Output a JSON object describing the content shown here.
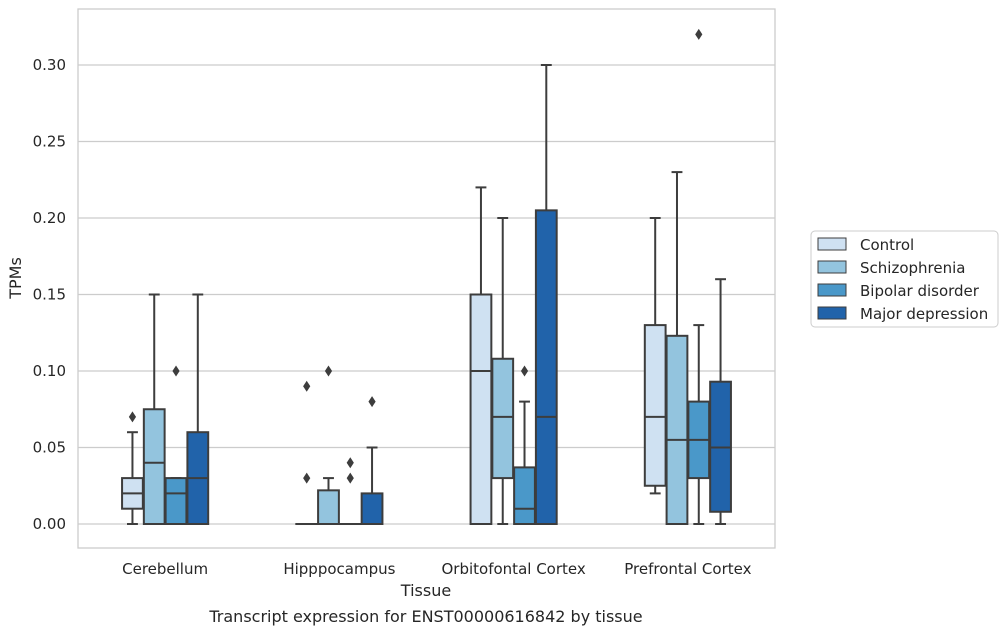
{
  "chart_data": {
    "type": "box",
    "caption": "Transcript expression for ENST00000616842 by tissue",
    "xlabel": "Tissue",
    "ylabel": "TPMs",
    "ylim": [
      -0.016,
      0.338
    ],
    "yticks": [
      0.0,
      0.05,
      0.1,
      0.15,
      0.2,
      0.25,
      0.3
    ],
    "ytick_labels": [
      "0.00",
      "0.05",
      "0.10",
      "0.15",
      "0.20",
      "0.25",
      "0.30"
    ],
    "grid": true,
    "legend_position": "right",
    "categories": [
      "Cerebellum",
      "Hipppocampus",
      "Orbitofontal Cortex",
      "Prefrontal Cortex"
    ],
    "series": [
      {
        "name": "Control",
        "color": "#cfe1f2",
        "boxes": [
          {
            "whislo": 0.0,
            "q1": 0.01,
            "med": 0.02,
            "q3": 0.03,
            "whishi": 0.06,
            "fliers": [
              0.07
            ]
          },
          {
            "whislo": 0.0,
            "q1": 0.0,
            "med": 0.0,
            "q3": 0.0,
            "whishi": 0.0,
            "fliers": [
              0.03,
              0.09
            ]
          },
          {
            "whislo": 0.0,
            "q1": 0.0,
            "med": 0.1,
            "q3": 0.15,
            "whishi": 0.22,
            "fliers": []
          },
          {
            "whislo": 0.02,
            "q1": 0.025,
            "med": 0.07,
            "q3": 0.13,
            "whishi": 0.2,
            "fliers": []
          }
        ]
      },
      {
        "name": "Schizophrenia",
        "color": "#93c4de",
        "boxes": [
          {
            "whislo": 0.0,
            "q1": 0.0,
            "med": 0.04,
            "q3": 0.075,
            "whishi": 0.15,
            "fliers": []
          },
          {
            "whislo": 0.0,
            "q1": 0.0,
            "med": 0.0,
            "q3": 0.022,
            "whishi": 0.03,
            "fliers": [
              0.1
            ]
          },
          {
            "whislo": 0.0,
            "q1": 0.03,
            "med": 0.07,
            "q3": 0.108,
            "whishi": 0.2,
            "fliers": []
          },
          {
            "whislo": 0.0,
            "q1": 0.0,
            "med": 0.055,
            "q3": 0.123,
            "whishi": 0.23,
            "fliers": []
          }
        ]
      },
      {
        "name": "Bipolar disorder",
        "color": "#4a98c9",
        "boxes": [
          {
            "whislo": 0.0,
            "q1": 0.0,
            "med": 0.02,
            "q3": 0.03,
            "whishi": 0.03,
            "fliers": [
              0.1
            ]
          },
          {
            "whislo": 0.0,
            "q1": 0.0,
            "med": 0.0,
            "q3": 0.0,
            "whishi": 0.0,
            "fliers": [
              0.03,
              0.04
            ]
          },
          {
            "whislo": 0.0,
            "q1": 0.0,
            "med": 0.01,
            "q3": 0.037,
            "whishi": 0.08,
            "fliers": [
              0.1
            ]
          },
          {
            "whislo": 0.0,
            "q1": 0.03,
            "med": 0.055,
            "q3": 0.08,
            "whishi": 0.13,
            "fliers": [
              0.32
            ]
          }
        ]
      },
      {
        "name": "Major depression",
        "color": "#2163aa",
        "boxes": [
          {
            "whislo": 0.0,
            "q1": 0.0,
            "med": 0.03,
            "q3": 0.06,
            "whishi": 0.15,
            "fliers": []
          },
          {
            "whislo": 0.0,
            "q1": 0.0,
            "med": 0.0,
            "q3": 0.02,
            "whishi": 0.05,
            "fliers": [
              0.08
            ]
          },
          {
            "whislo": 0.0,
            "q1": 0.0,
            "med": 0.07,
            "q3": 0.205,
            "whishi": 0.3,
            "fliers": []
          },
          {
            "whislo": 0.0,
            "q1": 0.008,
            "med": 0.05,
            "q3": 0.093,
            "whishi": 0.16,
            "fliers": []
          }
        ]
      }
    ],
    "colors": {
      "grid": "#cccccc",
      "frame": "#cccccc",
      "lines": "#3d3d3d"
    }
  }
}
